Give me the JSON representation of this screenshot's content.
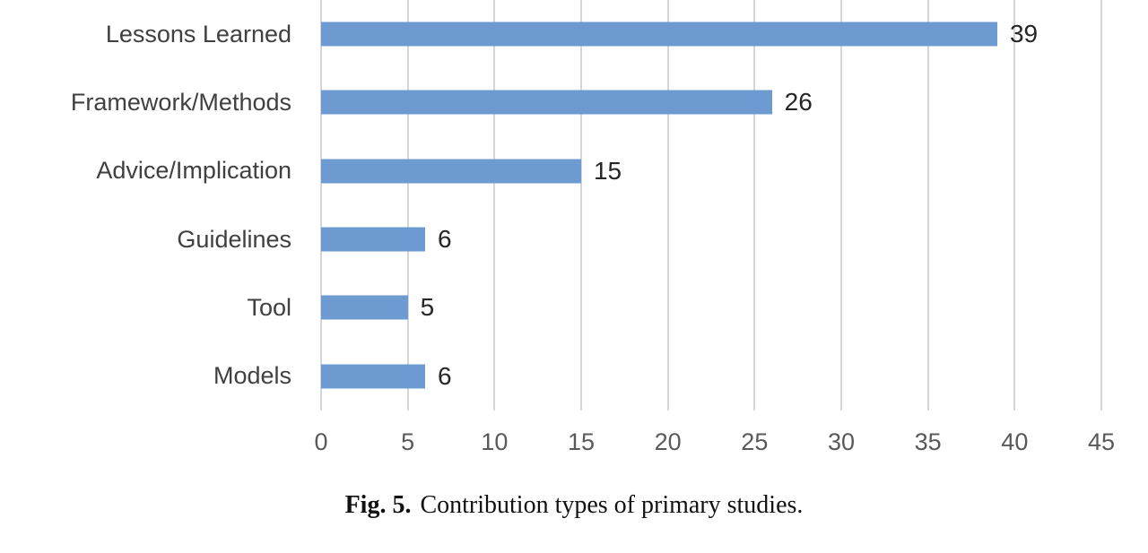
{
  "chart_data": {
    "type": "bar",
    "orientation": "horizontal",
    "categories": [
      "Lessons Learned",
      "Framework/Methods",
      "Advice/Implication",
      "Guidelines",
      "Tool",
      "Models"
    ],
    "values": [
      39,
      26,
      15,
      6,
      5,
      6
    ],
    "value_labels": [
      "39",
      "26",
      "15",
      "6",
      "5",
      "6"
    ],
    "title": "",
    "xlabel": "",
    "ylabel": "",
    "xlim": [
      0,
      45
    ],
    "xticks": [
      0,
      5,
      10,
      15,
      20,
      25,
      30,
      35,
      40,
      45
    ],
    "grid": "vertical",
    "legend": "none",
    "bar_color": "#6D9BD1",
    "gridline_color": "#D6D6D6",
    "category_label_color": "#404040",
    "value_label_color": "#262626",
    "tick_label_color": "#595959"
  },
  "caption": {
    "fig_label": "Fig. 5.",
    "text": "Contribution types of primary studies."
  }
}
